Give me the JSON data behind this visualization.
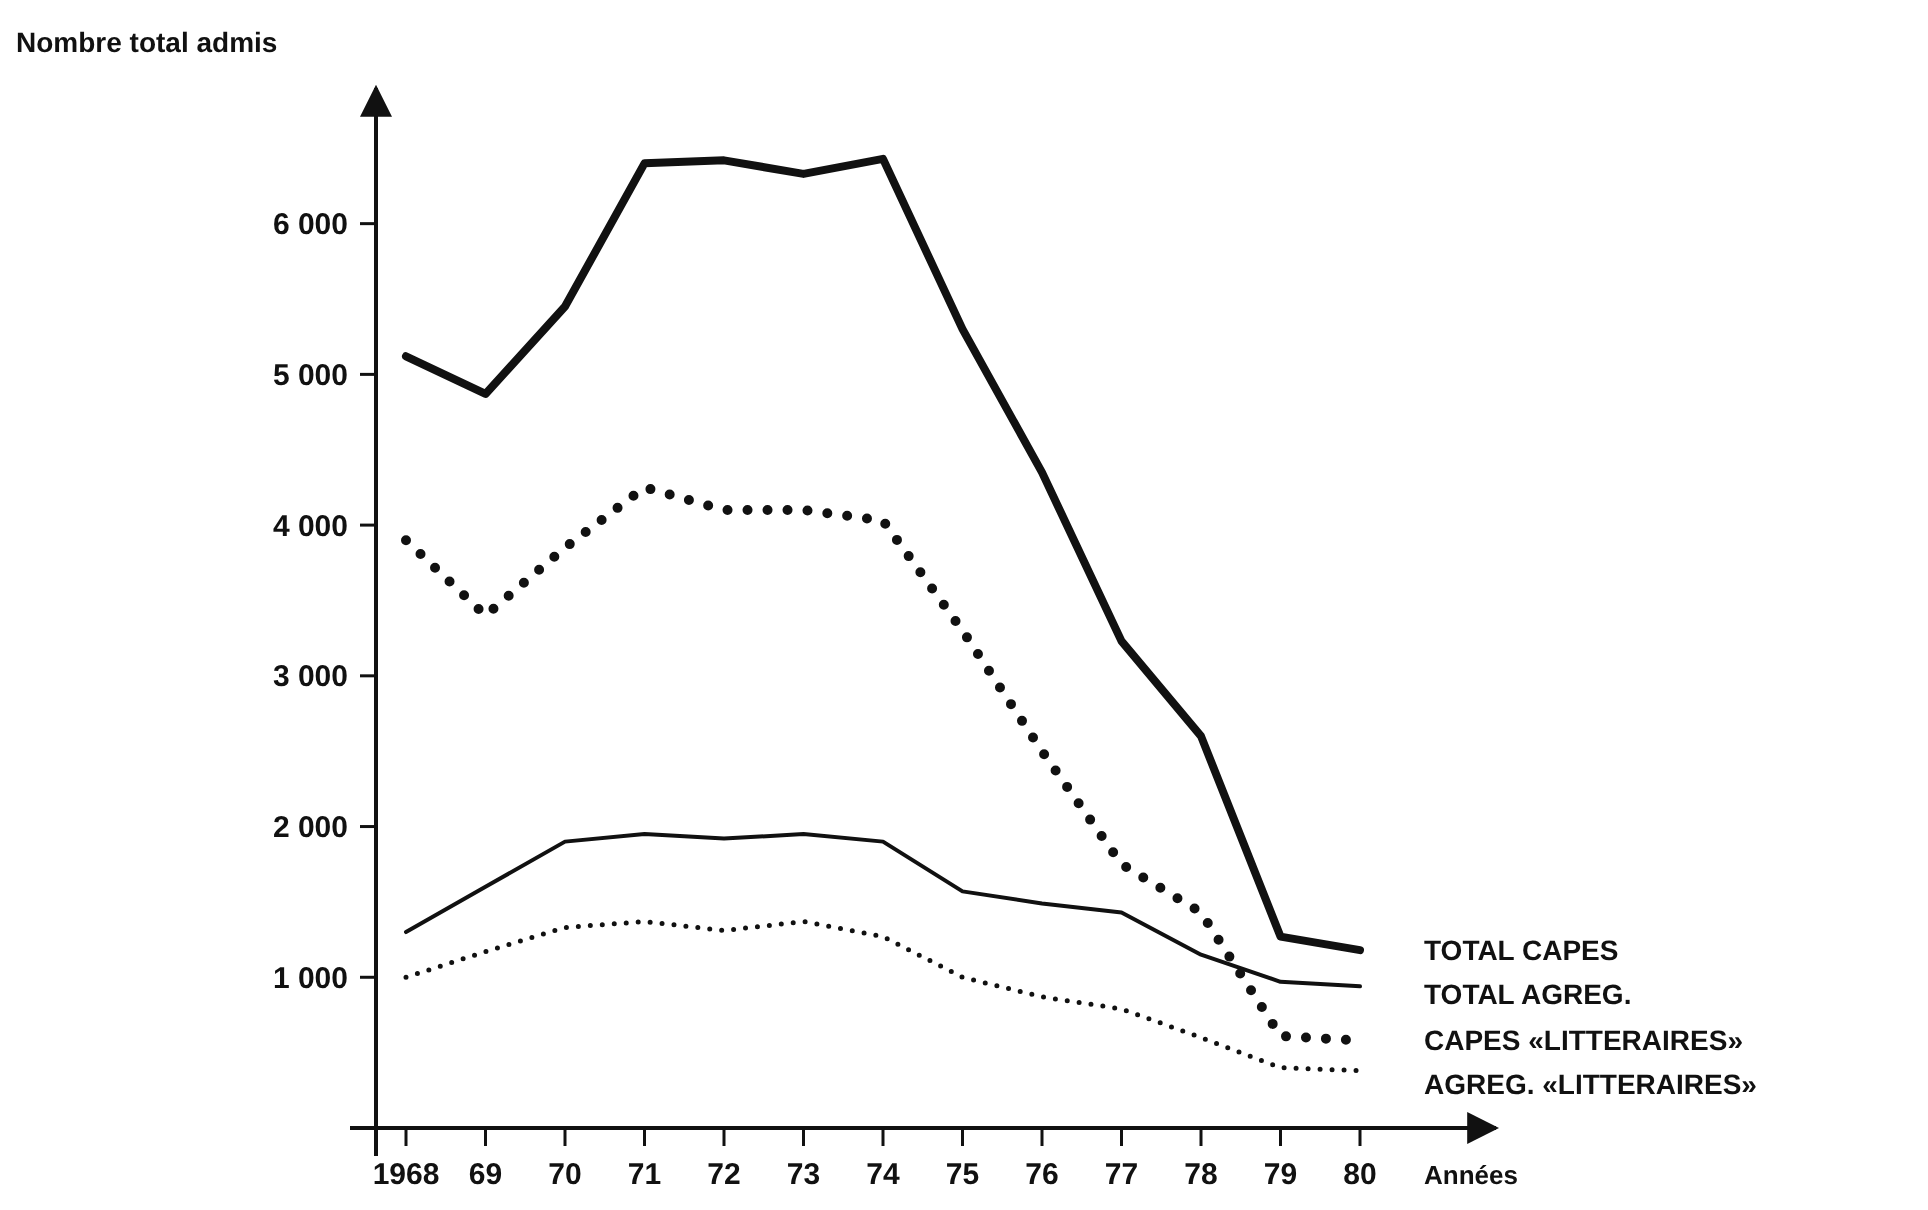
{
  "chart_data": {
    "type": "line",
    "xlabel": "Années",
    "ylabel": "Nombre total admis",
    "categories": [
      "1968",
      "69",
      "70",
      "71",
      "72",
      "73",
      "74",
      "75",
      "76",
      "77",
      "78",
      "79",
      "80"
    ],
    "series": [
      {
        "name": "TOTAL CAPES",
        "color": "#111111",
        "line_style": "solid",
        "values": [
          5120,
          4870,
          5450,
          6400,
          6420,
          6330,
          6430,
          5300,
          4350,
          3230,
          2600,
          1270,
          1180
        ]
      },
      {
        "name": "TOTAL AGREG.",
        "color": "#111111",
        "line_style": "solid",
        "values": [
          1300,
          1600,
          1900,
          1950,
          1920,
          1950,
          1900,
          1570,
          1490,
          1430,
          1150,
          970,
          940
        ]
      },
      {
        "name": "CAPES «LITTERAIRES»",
        "color": "#111111",
        "line_style": "dotted",
        "values": [
          3900,
          3400,
          3850,
          4250,
          4100,
          4100,
          4030,
          3300,
          2500,
          1750,
          1430,
          610,
          580
        ]
      },
      {
        "name": "AGREG. «LITTERAIRES»",
        "color": "#111111",
        "line_style": "dotted",
        "values": [
          1000,
          1170,
          1330,
          1370,
          1310,
          1370,
          1270,
          1000,
          870,
          790,
          600,
          400,
          380
        ]
      }
    ],
    "ylim": [
      0,
      6900
    ],
    "yticks": [
      {
        "value": 1000,
        "label": "1 000"
      },
      {
        "value": 2000,
        "label": "2 000"
      },
      {
        "value": 3000,
        "label": "3 000"
      },
      {
        "value": 4000,
        "label": "4 000"
      },
      {
        "value": 5000,
        "label": "5 000"
      },
      {
        "value": 6000,
        "label": "6 000"
      }
    ],
    "grid": false,
    "legend": false,
    "marker": "none"
  }
}
